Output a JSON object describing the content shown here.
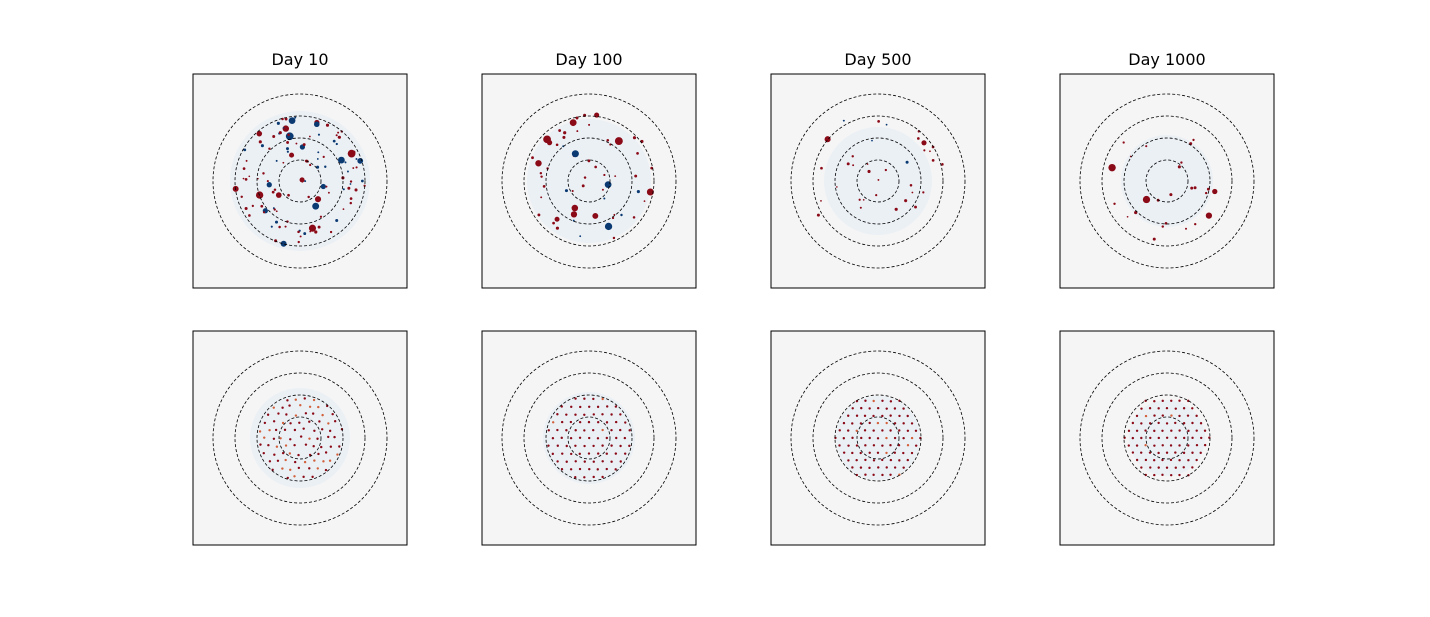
{
  "figure": {
    "titles": [
      "Day 10",
      "Day 100",
      "Day 500",
      "Day 1000"
    ]
  }
}
